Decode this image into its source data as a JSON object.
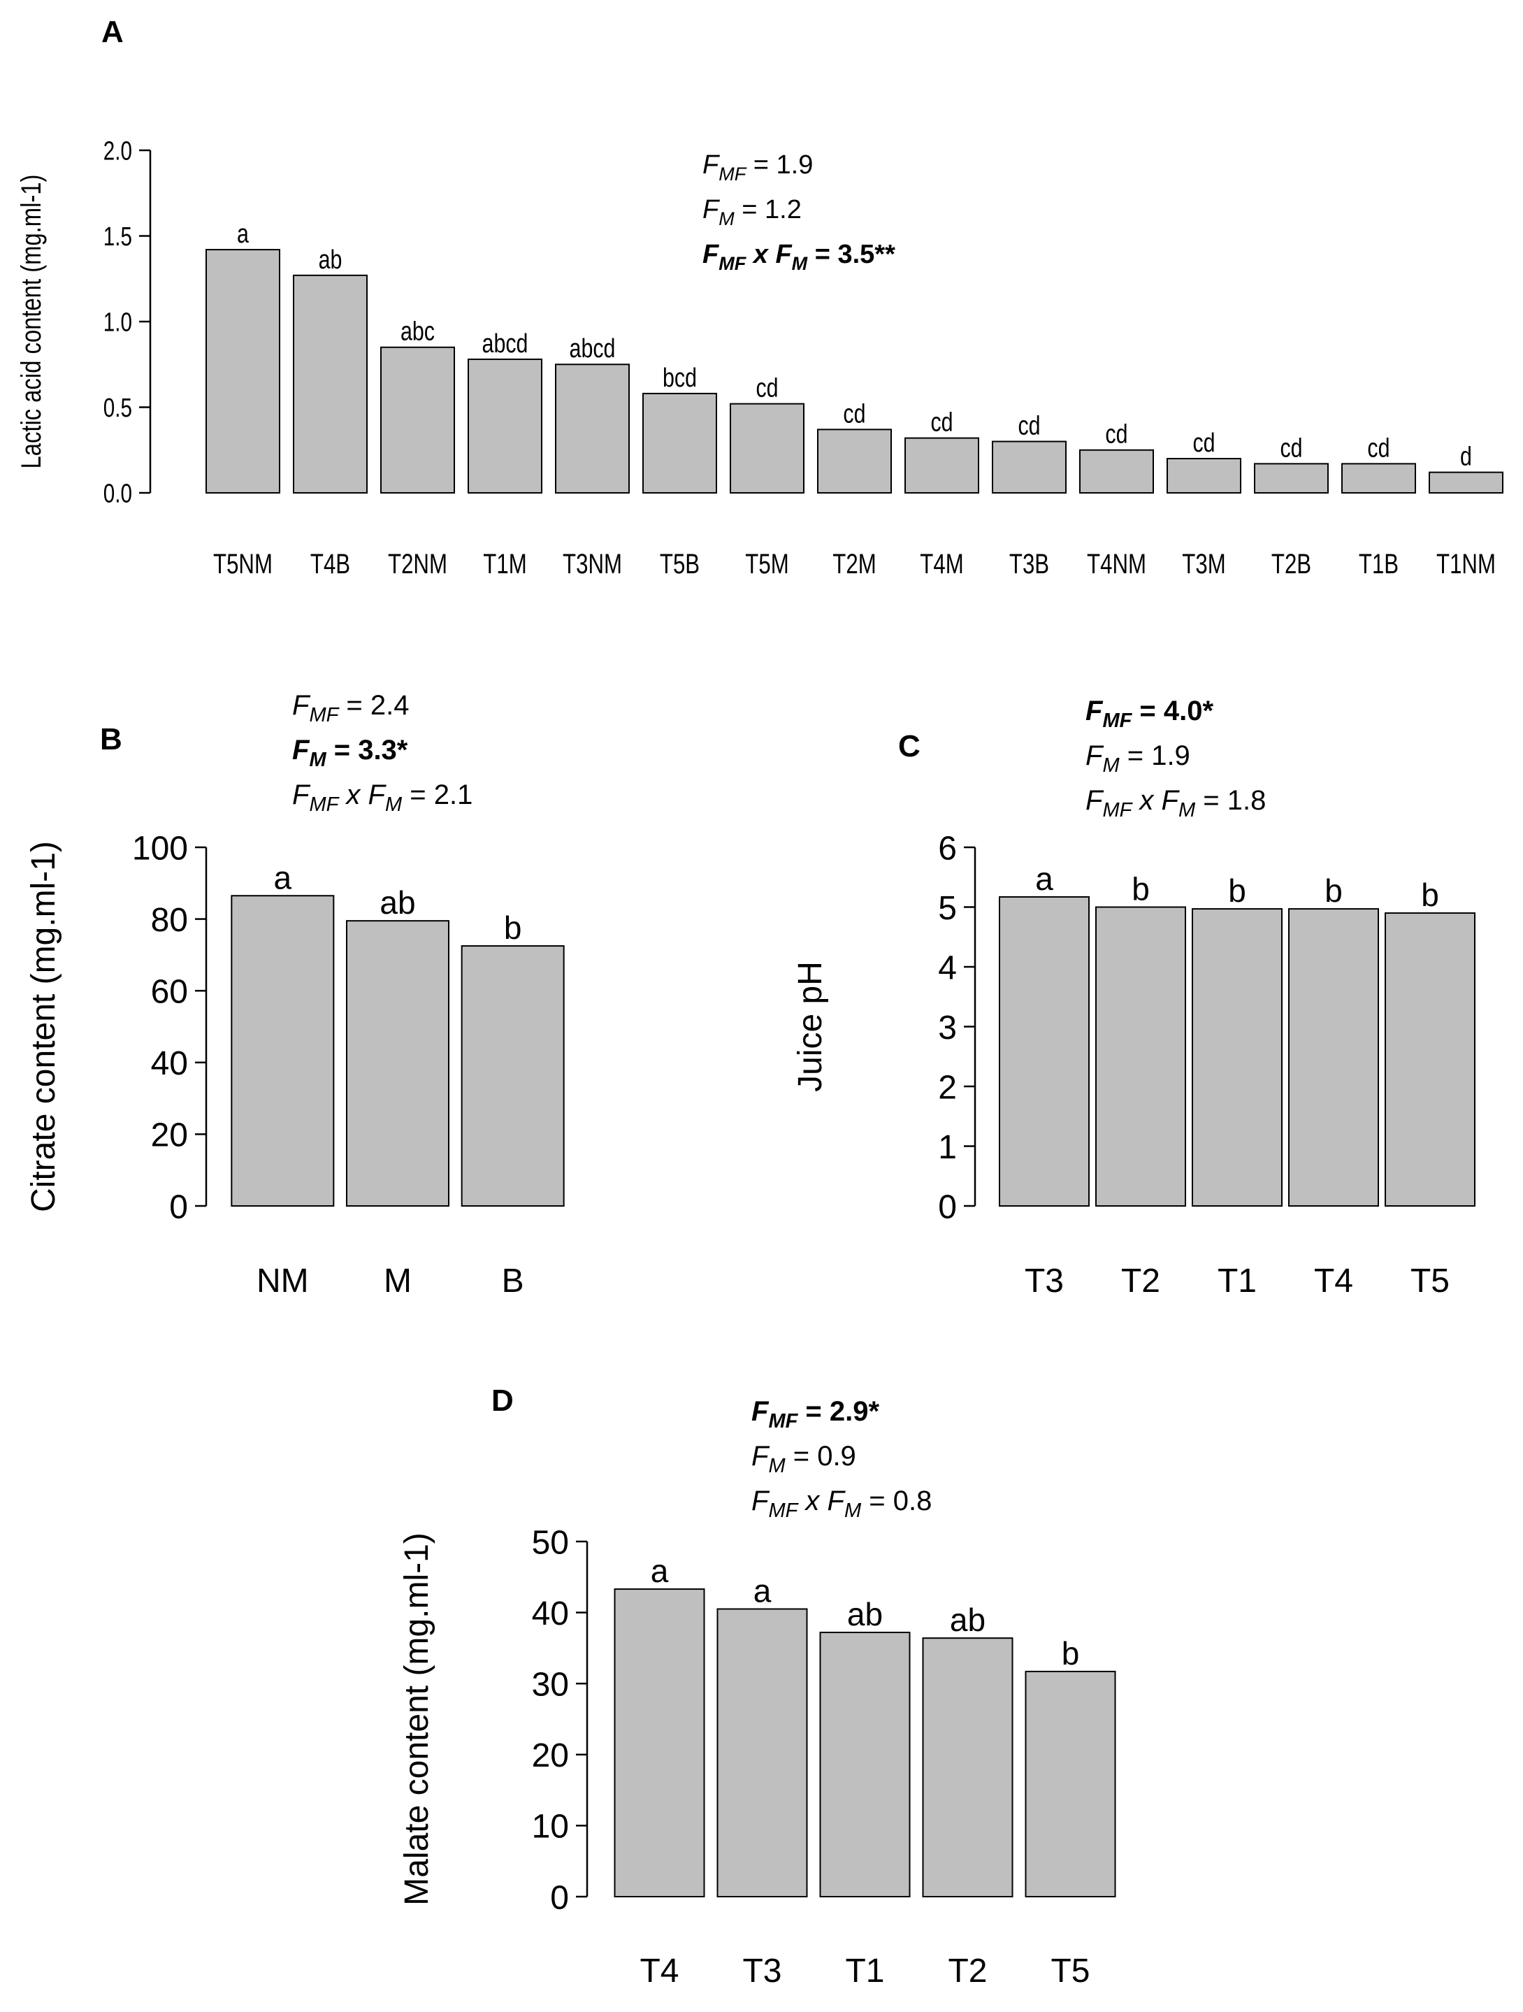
{
  "chart_data": [
    {
      "panel": "A",
      "type": "bar",
      "ylabel": "Lactic acid content (mg.ml-1)",
      "xlabel": "",
      "ylim": [
        0,
        2.0
      ],
      "yticks": [
        "0.0",
        "0.5",
        "1.0",
        "1.5",
        "2.0"
      ],
      "yticks_values": [
        0,
        0.5,
        1.0,
        1.5,
        2.0
      ],
      "categories": [
        "T5NM",
        "T4B",
        "T2NM",
        "T1M",
        "T3NM",
        "T5B",
        "T5M",
        "T2M",
        "T4M",
        "T3B",
        "T4NM",
        "T3M",
        "T2B",
        "T1B",
        "T1NM"
      ],
      "values": [
        1.42,
        1.27,
        0.85,
        0.78,
        0.75,
        0.58,
        0.52,
        0.37,
        0.32,
        0.3,
        0.25,
        0.2,
        0.17,
        0.17,
        0.12
      ],
      "letters": [
        "a",
        "ab",
        "abc",
        "abcd",
        "abcd",
        "bcd",
        "cd",
        "cd",
        "cd",
        "cd",
        "cd",
        "cd",
        "cd",
        "cd",
        "d"
      ],
      "stats": [
        {
          "F": "F",
          "sub": "MF",
          "rest": " = 1.9",
          "bold": false
        },
        {
          "F": "F",
          "sub": "M",
          "rest": " = 1.2",
          "bold": false
        },
        {
          "F": "F",
          "sub": "MF",
          "mid": " x ",
          "F2": "F",
          "sub2": "M",
          "rest": " = 3.5**",
          "bold": true
        }
      ]
    },
    {
      "panel": "B",
      "type": "bar",
      "ylabel": "Citrate content (mg.ml-1)",
      "xlabel": "",
      "ylim": [
        0,
        100
      ],
      "yticks": [
        "0",
        "20",
        "40",
        "60",
        "80",
        "100"
      ],
      "yticks_values": [
        0,
        20,
        40,
        60,
        80,
        100
      ],
      "categories": [
        "NM",
        "M",
        "B"
      ],
      "values": [
        86.5,
        79.5,
        72.5
      ],
      "letters": [
        "a",
        "ab",
        "b"
      ],
      "stats": [
        {
          "F": "F",
          "sub": "MF",
          "rest": " = 2.4",
          "bold": false
        },
        {
          "F": "F",
          "sub": "M",
          "rest": " = 3.3*",
          "bold": true
        },
        {
          "F": "F",
          "sub": "MF",
          "mid": " x ",
          "F2": "F",
          "sub2": "M",
          "rest": " = 2.1",
          "bold": false
        }
      ]
    },
    {
      "panel": "C",
      "type": "bar",
      "ylabel": "Juice pH",
      "xlabel": "",
      "ylim": [
        0,
        6
      ],
      "yticks": [
        "0",
        "1",
        "2",
        "3",
        "4",
        "5",
        "6"
      ],
      "yticks_values": [
        0,
        1,
        2,
        3,
        4,
        5,
        6
      ],
      "categories": [
        "T3",
        "T2",
        "T1",
        "T4",
        "T5"
      ],
      "values": [
        5.17,
        5.0,
        4.97,
        4.97,
        4.9
      ],
      "letters": [
        "a",
        "b",
        "b",
        "b",
        "b"
      ],
      "stats": [
        {
          "F": "F",
          "sub": "MF",
          "rest": " = 4.0*",
          "bold": true
        },
        {
          "F": "F",
          "sub": "M",
          "rest": " = 1.9",
          "bold": false
        },
        {
          "F": "F",
          "sub": "MF",
          "mid": " x ",
          "F2": "F",
          "sub2": "M",
          "rest": " = 1.8",
          "bold": false
        }
      ]
    },
    {
      "panel": "D",
      "type": "bar",
      "ylabel": "Malate content (mg.ml-1)",
      "xlabel": "",
      "ylim": [
        0,
        50
      ],
      "yticks": [
        "0",
        "10",
        "20",
        "30",
        "40",
        "50"
      ],
      "yticks_values": [
        0,
        10,
        20,
        30,
        40,
        50
      ],
      "categories": [
        "T4",
        "T3",
        "T1",
        "T2",
        "T5"
      ],
      "values": [
        43.3,
        40.5,
        37.2,
        36.4,
        31.7
      ],
      "letters": [
        "a",
        "a",
        "ab",
        "ab",
        "b"
      ],
      "stats": [
        {
          "F": "F",
          "sub": "MF",
          "rest": " = 2.9*",
          "bold": true
        },
        {
          "F": "F",
          "sub": "M",
          "rest": " = 0.9",
          "bold": false
        },
        {
          "F": "F",
          "sub": "MF",
          "mid": " x ",
          "F2": "F",
          "sub2": "M",
          "rest": " = 0.8",
          "bold": false
        }
      ]
    }
  ]
}
